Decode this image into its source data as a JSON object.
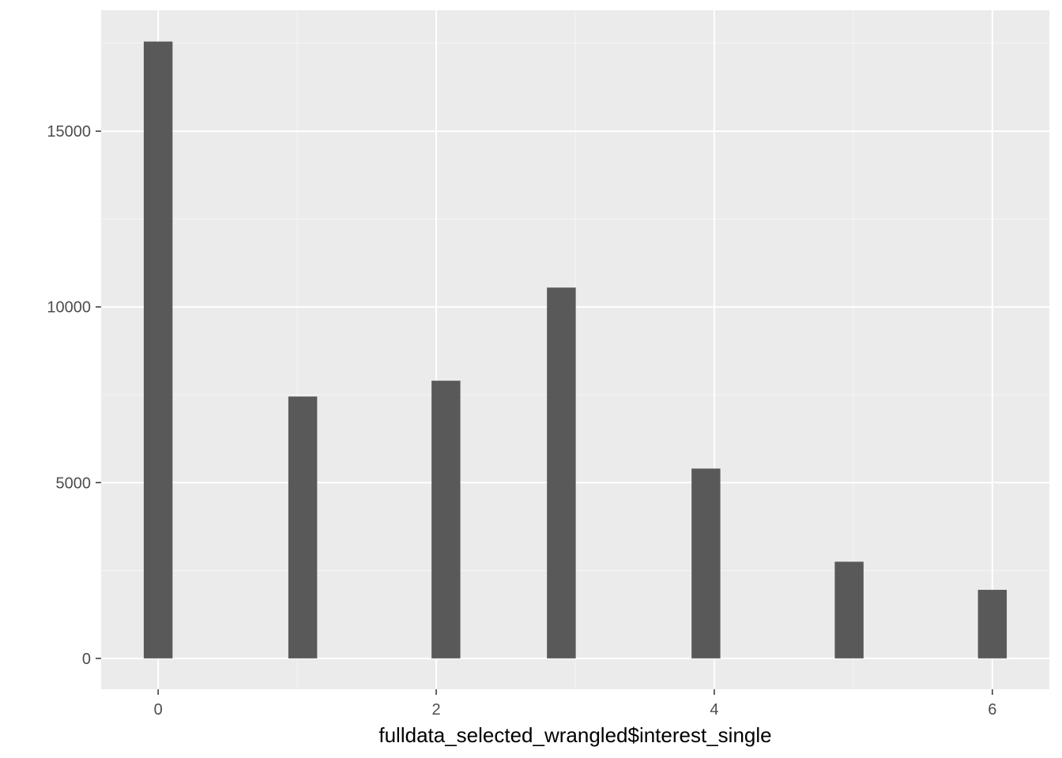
{
  "chart_data": {
    "type": "bar",
    "title": "",
    "xlabel": "fulldata_selected_wrangled$interest_single",
    "ylabel": "",
    "x": [
      0,
      1.04,
      2.07,
      2.9,
      3.94,
      4.97,
      6.0
    ],
    "values": [
      17550,
      7450,
      7900,
      10550,
      5400,
      2750,
      1950
    ],
    "bar_width": 0.207,
    "xlim": [
      -0.41,
      6.41
    ],
    "ylim": [
      -880,
      18440
    ],
    "xticks": [
      0,
      2,
      4,
      6
    ],
    "xtick_labels": [
      "0",
      "2",
      "4",
      "6"
    ],
    "yticks": [
      0,
      5000,
      10000,
      15000
    ],
    "ytick_labels": [
      "0",
      "5000",
      "10000",
      "15000"
    ],
    "grid": true,
    "legend": "none",
    "colors": {
      "panel_background": "#ebebeb",
      "grid_major": "#ffffff",
      "grid_minor": "#f5f5f5",
      "bar_fill": "#595959",
      "tick_mark": "#333333"
    }
  }
}
